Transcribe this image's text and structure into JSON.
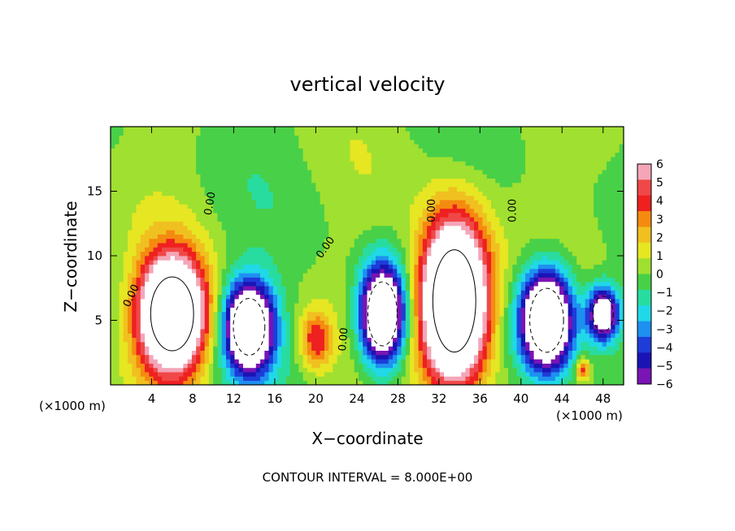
{
  "title": "vertical velocity",
  "chart_data": {
    "type": "heatmap",
    "title": "vertical velocity",
    "xlabel": "X−coordinate",
    "ylabel": "Z−coordinate",
    "x_unit_left": "(×1000 m)",
    "x_unit_right": "(×1000 m)",
    "xlim": [
      0,
      50
    ],
    "ylim": [
      0,
      20
    ],
    "x_ticks": [
      4,
      8,
      12,
      16,
      20,
      24,
      28,
      32,
      36,
      40,
      44,
      48
    ],
    "x_tick_labels": [
      "4",
      "8",
      "12",
      "16",
      "20",
      "24",
      "28",
      "32",
      "36",
      "40",
      "44",
      "48"
    ],
    "y_ticks": [
      5,
      10,
      15
    ],
    "y_tick_labels": [
      "5",
      "10",
      "15"
    ],
    "colorbar": {
      "levels": [
        6,
        5,
        4,
        3,
        2,
        1,
        0,
        -1,
        -2,
        -3,
        -4,
        -5,
        -6
      ],
      "labels": [
        "6",
        "5",
        "4",
        "3",
        "2",
        "1",
        "0",
        "−1",
        "−2",
        "−3",
        "−4",
        "−5",
        "−6"
      ],
      "colors": [
        "#f4a6b8",
        "#f04848",
        "#ee2020",
        "#f58a10",
        "#f0c020",
        "#e6e622",
        "#a0e030",
        "#48d048",
        "#28dca0",
        "#20d8e8",
        "#1e90f0",
        "#1e3cd8",
        "#1a14b4",
        "#7a14b4"
      ]
    },
    "features": [
      {
        "kind": "updraft",
        "xc": 6,
        "zc": 5.5,
        "rx": 3.8,
        "rz": 5.2,
        "amp": 14
      },
      {
        "kind": "updraft",
        "xc": 33.5,
        "zc": 6.5,
        "rx": 3.8,
        "rz": 7.2,
        "amp": 16
      },
      {
        "kind": "updraft",
        "xc": 20,
        "zc": 3.5,
        "rx": 1.8,
        "rz": 2.6,
        "amp": 4
      },
      {
        "kind": "updraft",
        "xc": 46,
        "zc": 1.2,
        "rx": 0.8,
        "rz": 1.0,
        "amp": 4
      },
      {
        "kind": "downdraft",
        "xc": 13.5,
        "zc": 4.5,
        "rx": 2.8,
        "rz": 4.0,
        "amp": -12
      },
      {
        "kind": "downdraft",
        "xc": 26.5,
        "zc": 5.5,
        "rx": 2.6,
        "rz": 4.5,
        "amp": -12
      },
      {
        "kind": "downdraft",
        "xc": 42.5,
        "zc": 5,
        "rx": 3.0,
        "rz": 4.5,
        "amp": -13
      },
      {
        "kind": "downdraft",
        "xc": 48,
        "zc": 5.5,
        "rx": 1.8,
        "rz": 2.5,
        "amp": -9
      }
    ],
    "contour_labels": [
      "0.00",
      "0.00",
      "0.00",
      "0.00",
      "0.00",
      "0.00"
    ],
    "contour_interval_text": "CONTOUR INTERVAL = 8.000E+00"
  }
}
